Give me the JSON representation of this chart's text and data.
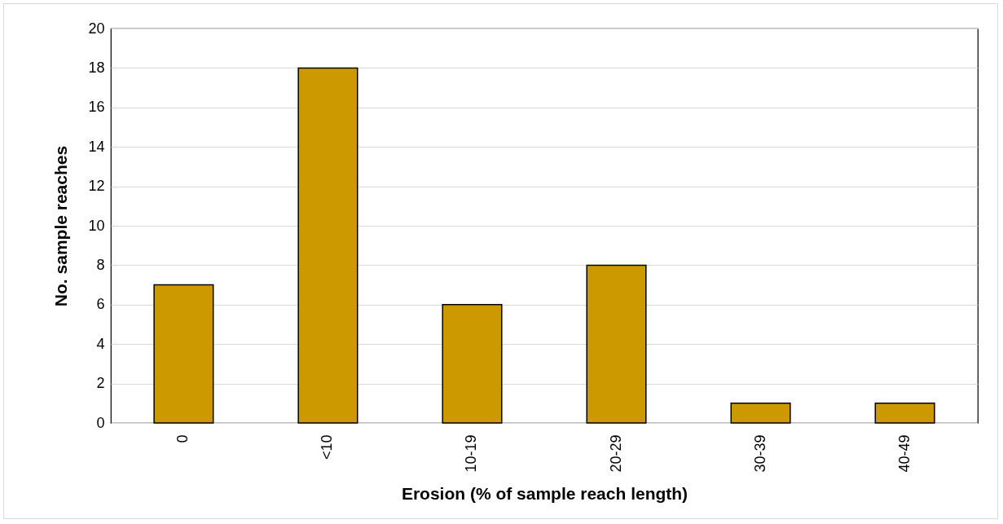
{
  "chart_data": {
    "type": "bar",
    "xlabel": "Erosion (% of sample reach length)",
    "ylabel": "No. sample reaches",
    "categories": [
      "0",
      "<10",
      "10-19",
      "20-29",
      "30-39",
      "40-49"
    ],
    "values": [
      7,
      18,
      6,
      8,
      1,
      1
    ],
    "color": "#cc9900",
    "ylim": [
      0,
      20
    ],
    "yticks": [
      0,
      2,
      4,
      6,
      8,
      10,
      12,
      14,
      16,
      18,
      20
    ],
    "grid": "y"
  }
}
